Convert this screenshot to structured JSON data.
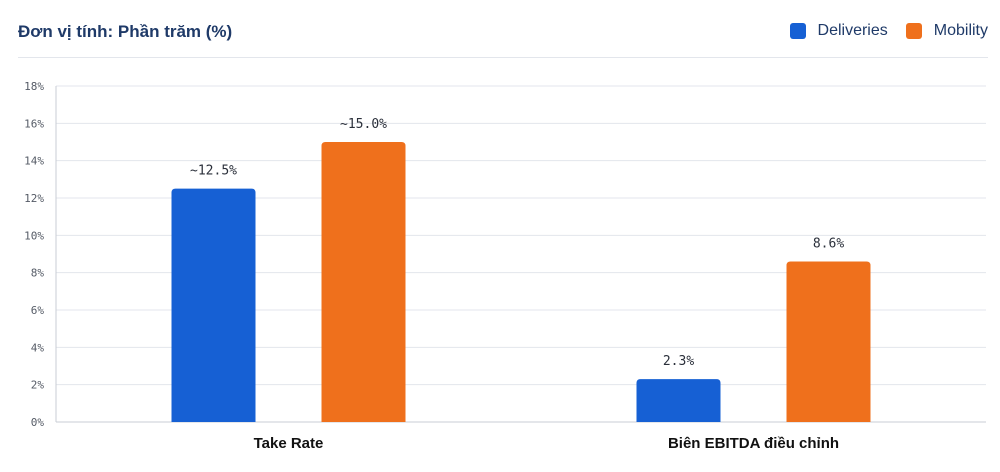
{
  "header": {
    "unit_title": "Đơn vị tính: Phần trăm (%)"
  },
  "legend": {
    "items": [
      {
        "label": "Deliveries",
        "color": "#1660d4"
      },
      {
        "label": "Mobility",
        "color": "#ef701c"
      }
    ]
  },
  "chart_data": {
    "type": "bar",
    "categories": [
      "Take Rate",
      "Biên EBITDA điều chỉnh"
    ],
    "series": [
      {
        "name": "Deliveries",
        "values": [
          12.5,
          2.3
        ],
        "labels": [
          "~12.5%",
          "2.3%"
        ],
        "color": "#1660d4"
      },
      {
        "name": "Mobility",
        "values": [
          15.0,
          8.6
        ],
        "labels": [
          "~15.0%",
          "8.6%"
        ],
        "color": "#ef701c"
      }
    ],
    "y_ticks": [
      "0%",
      "2%",
      "4%",
      "6%",
      "8%",
      "10%",
      "12%",
      "14%",
      "16%",
      "18%"
    ],
    "ylim": [
      0,
      18
    ],
    "grid": true,
    "legend_position": "top-right"
  }
}
